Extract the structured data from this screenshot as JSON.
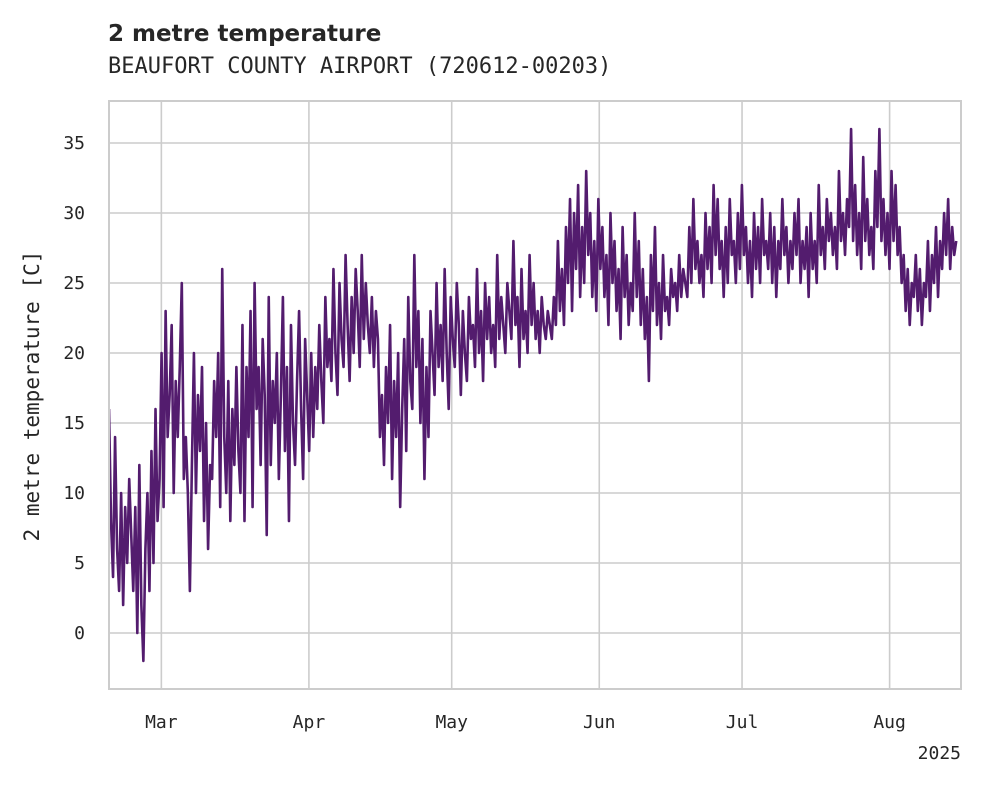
{
  "chart_data": {
    "type": "line",
    "title": "2 metre temperature",
    "subtitle": "BEAUFORT COUNTY AIRPORT (720612-00203)",
    "xlabel": "",
    "ylabel": "2 metre temperature [C]",
    "x_start": "2025-02-18",
    "x_end": "2025-08-15",
    "xlim": [
      "2025-02-18",
      "2025-08-16"
    ],
    "ylim": [
      -4,
      38
    ],
    "x_ticks": [
      {
        "date": "2025-03-01",
        "label": "Mar"
      },
      {
        "date": "2025-04-01",
        "label": "Apr"
      },
      {
        "date": "2025-05-01",
        "label": "May"
      },
      {
        "date": "2025-06-01",
        "label": "Jun"
      },
      {
        "date": "2025-07-01",
        "label": "Jul"
      },
      {
        "date": "2025-08-01",
        "label": "Aug"
      }
    ],
    "x_year_label": "2025",
    "y_ticks": [
      0,
      5,
      10,
      15,
      20,
      25,
      30,
      35
    ],
    "grid": true,
    "line_color": "#531c6e",
    "series": [
      {
        "values": [
          16,
          8,
          4,
          14,
          6,
          3,
          10,
          2,
          9,
          5,
          11,
          7,
          3,
          9,
          0,
          12,
          2,
          -2,
          6,
          10,
          3,
          13,
          5,
          16,
          8,
          11,
          20,
          9,
          23,
          14,
          17,
          22,
          10,
          18,
          14,
          19,
          25,
          11,
          14,
          10,
          3,
          12,
          20,
          10,
          17,
          13,
          19,
          8,
          15,
          6,
          12,
          11,
          18,
          14,
          20,
          9,
          26,
          14,
          10,
          18,
          8,
          16,
          12,
          19,
          13,
          10,
          22,
          8,
          19,
          14,
          23,
          9,
          25,
          16,
          19,
          12,
          21,
          17,
          7,
          24,
          12,
          18,
          15,
          20,
          11,
          17,
          24,
          13,
          19,
          8,
          22,
          15,
          12,
          18,
          23,
          16,
          11,
          21,
          17,
          13,
          20,
          14,
          19,
          16,
          22,
          18,
          15,
          24,
          19,
          21,
          18,
          26,
          20,
          17,
          25,
          21,
          19,
          27,
          22,
          18,
          24,
          20,
          26,
          23,
          19,
          27,
          21,
          25,
          22,
          20,
          24,
          19,
          23,
          21,
          14,
          17,
          12,
          19,
          15,
          22,
          11,
          18,
          14,
          20,
          9,
          16,
          21,
          13,
          24,
          18,
          16,
          27,
          19,
          23,
          15,
          21,
          11,
          19,
          14,
          23,
          20,
          17,
          25,
          19,
          22,
          18,
          26,
          20,
          16,
          24,
          21,
          19,
          25,
          22,
          17,
          23,
          20,
          18,
          24,
          21,
          22,
          19,
          26,
          20,
          23,
          18,
          25,
          21,
          24,
          20,
          22,
          19,
          27,
          21,
          24,
          22,
          20,
          25,
          23,
          21,
          28,
          22,
          24,
          19,
          26,
          21,
          23,
          20,
          27,
          22,
          25,
          21,
          23,
          20,
          24,
          22,
          21,
          23,
          22,
          21,
          24,
          22,
          28,
          23,
          26,
          22,
          29,
          25,
          31,
          23,
          30,
          26,
          32,
          24,
          29,
          25,
          33,
          27,
          30,
          24,
          28,
          23,
          31,
          26,
          29,
          24,
          27,
          22,
          30,
          25,
          28,
          23,
          26,
          21,
          29,
          24,
          27,
          22,
          25,
          23,
          30,
          24,
          28,
          22,
          26,
          21,
          24,
          18,
          27,
          23,
          29,
          22,
          25,
          21,
          27,
          23,
          24,
          22,
          26,
          24,
          25,
          23,
          27,
          24,
          26,
          25,
          24,
          29,
          25,
          31,
          26,
          28,
          25,
          27,
          24,
          30,
          26,
          29,
          25,
          32,
          27,
          31,
          26,
          28,
          24,
          29,
          25,
          31,
          27,
          28,
          25,
          30,
          26,
          32,
          27,
          29,
          25,
          28,
          24,
          30,
          26,
          29,
          25,
          31,
          27,
          28,
          26,
          30,
          25,
          29,
          24,
          28,
          26,
          31,
          27,
          29,
          25,
          28,
          26,
          30,
          27,
          31,
          25,
          28,
          26,
          29,
          24,
          30,
          26,
          28,
          25,
          32,
          27,
          29,
          26,
          31,
          28,
          30,
          27,
          29,
          26,
          33,
          28,
          30,
          27,
          31,
          29,
          36,
          28,
          32,
          27,
          30,
          26,
          34,
          28,
          31,
          27,
          29,
          26,
          33,
          29,
          36,
          28,
          31,
          27,
          30,
          26,
          33,
          28,
          32,
          27,
          29,
          25,
          27,
          23,
          26,
          22,
          25,
          24,
          27,
          23,
          26,
          22,
          25,
          24,
          28,
          23,
          27,
          25,
          29,
          24,
          28,
          26,
          30,
          27,
          31,
          26,
          29,
          27,
          28
        ]
      }
    ]
  }
}
